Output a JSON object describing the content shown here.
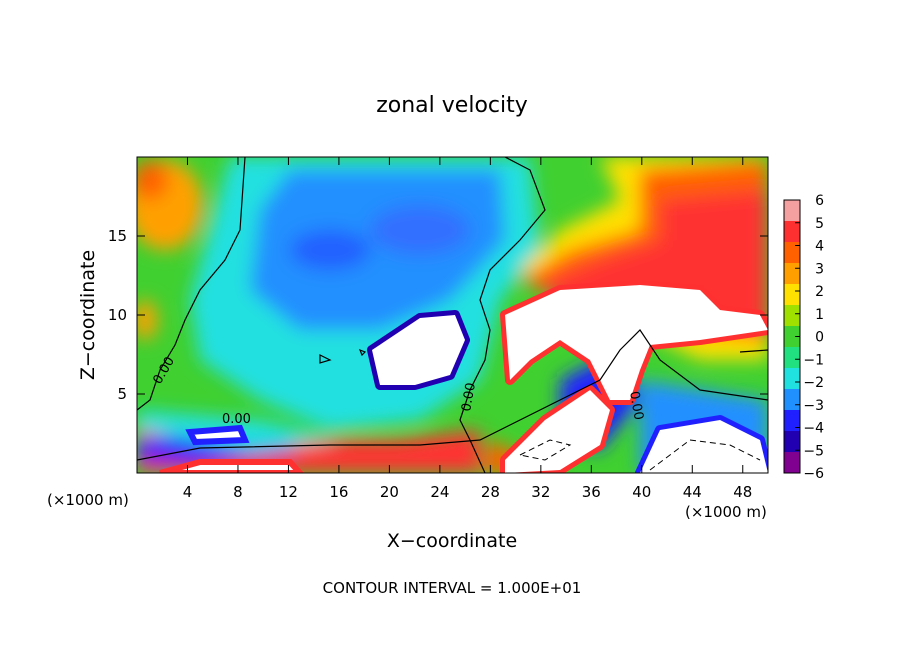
{
  "chart_data": {
    "type": "heatmap",
    "title": "zonal velocity",
    "xlabel": "X−coordinate",
    "ylabel": "Z−coordinate",
    "x_unit_left": "(×1000 m)",
    "x_unit_right": "(×1000 m)",
    "xlim": [
      0,
      50
    ],
    "ylim": [
      0,
      20
    ],
    "x_ticks": [
      4,
      8,
      12,
      16,
      20,
      24,
      28,
      32,
      36,
      40,
      44,
      48
    ],
    "x_tick_labels": [
      "4",
      "8",
      "12",
      "16",
      "20",
      "24",
      "28",
      "32",
      "36",
      "40",
      "44",
      "48"
    ],
    "y_ticks": [
      5,
      10,
      15
    ],
    "y_tick_labels": [
      "5",
      "10",
      "15"
    ],
    "contour_labels": [
      "0.00",
      "0.00",
      "0.00",
      "0.00",
      "0.00"
    ],
    "footer": "CONTOUR INTERVAL = 1.000E+01",
    "colorbar": {
      "min": -6,
      "max": 6,
      "ticks": [
        6,
        5,
        4,
        3,
        2,
        1,
        0,
        -1,
        -2,
        -3,
        -4,
        -5,
        -6
      ],
      "tick_labels": [
        "6",
        "5",
        "4",
        "3",
        "2",
        "1",
        "0",
        "−1",
        "−2",
        "−3",
        "−4",
        "−5",
        "−6"
      ],
      "colors": [
        "#f5a0a0",
        "#ff3030",
        "#ff6000",
        "#ffa000",
        "#ffe000",
        "#a0e000",
        "#40d030",
        "#20e080",
        "#20e0e0",
        "#2090ff",
        "#2020ff",
        "#2000b0",
        "#800090"
      ]
    },
    "grid": false
  }
}
